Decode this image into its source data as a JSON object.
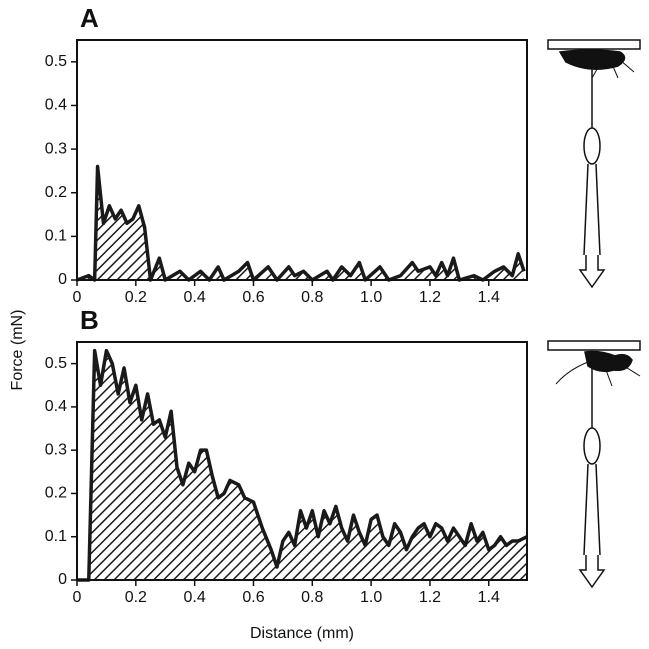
{
  "axis_labels": {
    "x": "Distance (mm)",
    "y": "Force (mN)"
  },
  "chart_data": [
    {
      "type": "area",
      "label": "A",
      "color": "#1a1a1a",
      "x": [
        0.0,
        0.04,
        0.06,
        0.07,
        0.09,
        0.11,
        0.13,
        0.15,
        0.17,
        0.19,
        0.21,
        0.23,
        0.25,
        0.28,
        0.3,
        0.35,
        0.38,
        0.42,
        0.45,
        0.48,
        0.5,
        0.55,
        0.58,
        0.6,
        0.65,
        0.68,
        0.72,
        0.74,
        0.77,
        0.8,
        0.85,
        0.87,
        0.9,
        0.93,
        0.96,
        0.98,
        1.03,
        1.06,
        1.1,
        1.14,
        1.16,
        1.2,
        1.22,
        1.24,
        1.26,
        1.28,
        1.3,
        1.35,
        1.38,
        1.42,
        1.45,
        1.48,
        1.5,
        1.52
      ],
      "values": [
        0,
        0.01,
        0.0,
        0.26,
        0.13,
        0.17,
        0.14,
        0.16,
        0.13,
        0.14,
        0.17,
        0.12,
        0.0,
        0.05,
        0.0,
        0.02,
        0.0,
        0.02,
        0.0,
        0.03,
        0.0,
        0.02,
        0.04,
        0.0,
        0.03,
        0.0,
        0.03,
        0.01,
        0.02,
        0.0,
        0.02,
        0.0,
        0.03,
        0.01,
        0.04,
        0.0,
        0.03,
        0.0,
        0.01,
        0.04,
        0.02,
        0.03,
        0.01,
        0.04,
        0.01,
        0.05,
        0.0,
        0.01,
        0.0,
        0.02,
        0.03,
        0.01,
        0.06,
        0.02
      ],
      "xlim": [
        0,
        1.53
      ],
      "ylim": [
        0,
        0.55
      ],
      "xticks": [
        0,
        0.2,
        0.4,
        0.6,
        0.8,
        {
          "value": 1,
          "label": "1.0"
        },
        1.2,
        1.4
      ],
      "yticks": [
        0,
        0.1,
        0.2,
        0.3,
        0.4,
        0.5
      ]
    },
    {
      "type": "area",
      "label": "B",
      "color": "#1a1a1a",
      "x": [
        0.0,
        0.04,
        0.06,
        0.08,
        0.1,
        0.12,
        0.14,
        0.16,
        0.18,
        0.2,
        0.22,
        0.24,
        0.26,
        0.28,
        0.3,
        0.32,
        0.34,
        0.36,
        0.38,
        0.4,
        0.42,
        0.44,
        0.46,
        0.48,
        0.5,
        0.52,
        0.55,
        0.57,
        0.6,
        0.63,
        0.66,
        0.68,
        0.7,
        0.72,
        0.74,
        0.76,
        0.78,
        0.8,
        0.82,
        0.84,
        0.86,
        0.88,
        0.9,
        0.92,
        0.94,
        0.96,
        0.98,
        1.0,
        1.02,
        1.04,
        1.06,
        1.08,
        1.1,
        1.12,
        1.14,
        1.16,
        1.18,
        1.2,
        1.22,
        1.24,
        1.26,
        1.28,
        1.3,
        1.32,
        1.34,
        1.36,
        1.38,
        1.4,
        1.42,
        1.44,
        1.46,
        1.48,
        1.5,
        1.53
      ],
      "values": [
        0,
        0.0,
        0.53,
        0.45,
        0.53,
        0.5,
        0.43,
        0.49,
        0.41,
        0.45,
        0.37,
        0.43,
        0.36,
        0.37,
        0.33,
        0.39,
        0.26,
        0.22,
        0.27,
        0.25,
        0.3,
        0.3,
        0.24,
        0.19,
        0.2,
        0.23,
        0.22,
        0.19,
        0.18,
        0.12,
        0.07,
        0.03,
        0.09,
        0.11,
        0.08,
        0.16,
        0.12,
        0.16,
        0.1,
        0.16,
        0.13,
        0.17,
        0.12,
        0.09,
        0.15,
        0.11,
        0.08,
        0.14,
        0.15,
        0.1,
        0.08,
        0.13,
        0.11,
        0.07,
        0.1,
        0.12,
        0.13,
        0.1,
        0.13,
        0.12,
        0.09,
        0.12,
        0.1,
        0.08,
        0.13,
        0.09,
        0.11,
        0.07,
        0.08,
        0.1,
        0.08,
        0.09,
        0.09,
        0.1
      ],
      "xlim": [
        0,
        1.53
      ],
      "ylim": [
        0,
        0.55
      ],
      "xticks": [
        0,
        0.2,
        0.4,
        0.6,
        0.8,
        {
          "value": 1,
          "label": "1.0"
        },
        1.2,
        1.4
      ],
      "yticks": [
        0,
        0.1,
        0.2,
        0.3,
        0.4,
        0.5
      ]
    }
  ]
}
